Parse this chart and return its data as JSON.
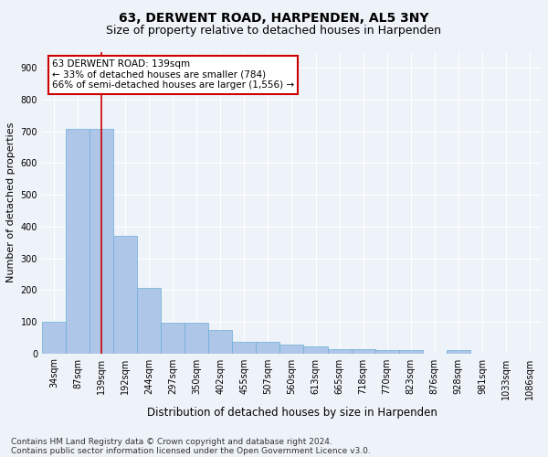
{
  "title1": "63, DERWENT ROAD, HARPENDEN, AL5 3NY",
  "title2": "Size of property relative to detached houses in Harpenden",
  "xlabel": "Distribution of detached houses by size in Harpenden",
  "ylabel": "Number of detached properties",
  "categories": [
    "34sqm",
    "87sqm",
    "139sqm",
    "192sqm",
    "244sqm",
    "297sqm",
    "350sqm",
    "402sqm",
    "455sqm",
    "507sqm",
    "560sqm",
    "613sqm",
    "665sqm",
    "718sqm",
    "770sqm",
    "823sqm",
    "876sqm",
    "928sqm",
    "981sqm",
    "1033sqm",
    "1086sqm"
  ],
  "values": [
    100,
    707,
    707,
    372,
    205,
    97,
    97,
    73,
    35,
    35,
    28,
    22,
    12,
    12,
    10,
    10,
    0,
    10,
    0,
    0,
    0
  ],
  "bar_color": "#aec6e8",
  "bar_edge_color": "#6aaed6",
  "vline_x_index": 2,
  "vline_color": "#cc0000",
  "annotation_line1": "63 DERWENT ROAD: 139sqm",
  "annotation_line2": "← 33% of detached houses are smaller (784)",
  "annotation_line3": "66% of semi-detached houses are larger (1,556) →",
  "annotation_box_color": "#ffffff",
  "annotation_box_edge_color": "#cc0000",
  "ylim": [
    0,
    950
  ],
  "yticks": [
    0,
    100,
    200,
    300,
    400,
    500,
    600,
    700,
    800,
    900
  ],
  "footnote1": "Contains HM Land Registry data © Crown copyright and database right 2024.",
  "footnote2": "Contains public sector information licensed under the Open Government Licence v3.0.",
  "bg_color": "#eef2f9",
  "grid_color": "#ffffff",
  "title1_fontsize": 10,
  "title2_fontsize": 9,
  "ylabel_fontsize": 8,
  "xlabel_fontsize": 8.5,
  "tick_fontsize": 7,
  "annotation_fontsize": 7.5,
  "footnote_fontsize": 6.5
}
